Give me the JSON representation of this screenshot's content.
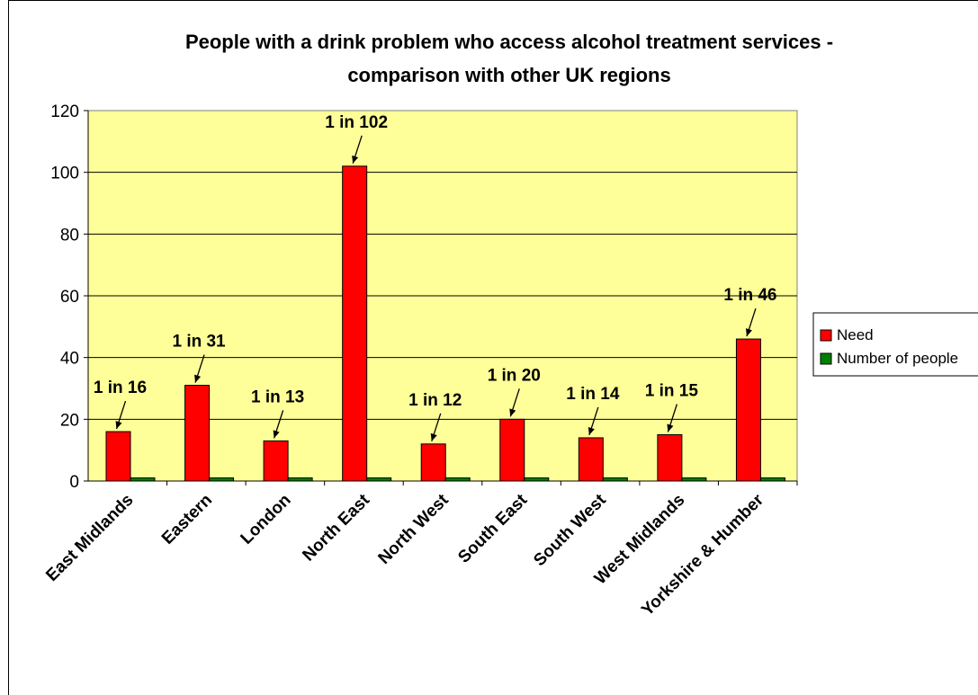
{
  "chart_data": {
    "type": "bar",
    "title": "People with a drink problem who access alcohol treatment services - comparison with other UK regions",
    "title_lines": [
      "People with a drink problem who access alcohol treatment services -",
      "comparison with other UK regions"
    ],
    "categories": [
      "East Midlands",
      "Eastern",
      "London",
      "North East",
      "North West",
      "South East",
      "South West",
      "West Midlands",
      "Yorkshire & Humber"
    ],
    "series": [
      {
        "name": "Need",
        "color": "#ff0000",
        "values": [
          16,
          31,
          13,
          102,
          12,
          20,
          14,
          15,
          46
        ]
      },
      {
        "name": "Number of people",
        "color": "#008000",
        "values": [
          1,
          1,
          1,
          1,
          1,
          1,
          1,
          1,
          1
        ]
      }
    ],
    "annotations": [
      "1 in 16",
      "1 in 31",
      "1 in 13",
      "1 in 102",
      "1 in 12",
      "1 in 20",
      "1 in 14",
      "1 in 15",
      "1 in 46"
    ],
    "ylim": [
      0,
      120
    ],
    "yticks": [
      0,
      20,
      40,
      60,
      80,
      100,
      120
    ],
    "xlabel": "",
    "ylabel": "",
    "grid": true,
    "legend": "right",
    "plot_background": "#ffff99"
  }
}
